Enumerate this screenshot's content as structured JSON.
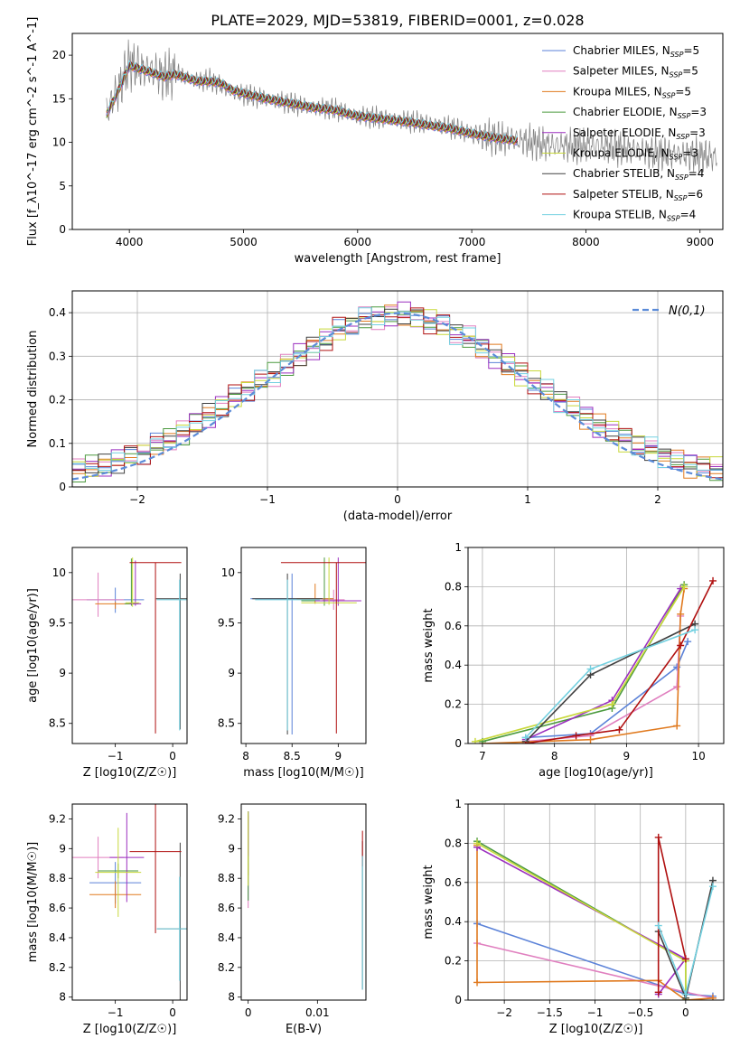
{
  "figure_title": "PLATE=2029, MJD=53819, FIBERID=0001, z=0.028",
  "models": [
    {
      "name": "Chabrier MILES, N",
      "sub": "SSP",
      "n": "=5",
      "color": "#5b82d8"
    },
    {
      "name": "Salpeter MILES, N",
      "sub": "SSP",
      "n": "=5",
      "color": "#e07fbf"
    },
    {
      "name": "Kroupa MILES, N",
      "sub": "SSP",
      "n": "=5",
      "color": "#e07a1f"
    },
    {
      "name": "Chabrier ELODIE, N",
      "sub": "SSP",
      "n": "=3",
      "color": "#4c9a3f"
    },
    {
      "name": "Salpeter ELODIE, N",
      "sub": "SSP",
      "n": "=3",
      "color": "#9b2fbf"
    },
    {
      "name": "Kroupa ELODIE, N",
      "sub": "SSP",
      "n": "=3",
      "color": "#c8d83a"
    },
    {
      "name": "Chabrier STELIB, N",
      "sub": "SSP",
      "n": "=4",
      "color": "#404040"
    },
    {
      "name": "Salpeter STELIB, N",
      "sub": "SSP",
      "n": "=6",
      "color": "#b01010"
    },
    {
      "name": "Kroupa STELIB, N",
      "sub": "SSP",
      "n": "=4",
      "color": "#72d0e0"
    }
  ],
  "chart_data": [
    {
      "type": "line",
      "id": "spectrum",
      "xlabel": "wavelength [Angstrom, rest frame]",
      "ylabel": "Flux [f_λ10^-17 erg cm^-2 s^-1 A^-1]",
      "xlim": [
        3500,
        9200
      ],
      "ylim": [
        0,
        22.5
      ],
      "xticks": [
        4000,
        5000,
        6000,
        7000,
        8000,
        9000
      ],
      "yticks": [
        0,
        5,
        10,
        15,
        20
      ],
      "observed": {
        "color": "#808080",
        "x": [
          3800,
          3900,
          4000,
          4100,
          4200,
          4300,
          4400,
          4500,
          4600,
          4700,
          4800,
          4900,
          5000,
          5200,
          5400,
          5600,
          5800,
          6000,
          6200,
          6400,
          6600,
          6800,
          7000,
          7200,
          7400,
          7600,
          7800,
          8000,
          8200,
          8400,
          8600,
          8800,
          9000,
          9150
        ],
        "y": [
          13.5,
          16.0,
          19.0,
          18.5,
          18.2,
          17.5,
          18.0,
          17.5,
          17.0,
          17.2,
          16.5,
          15.8,
          15.5,
          15.0,
          14.5,
          14.0,
          13.8,
          13.0,
          12.8,
          12.5,
          12.2,
          11.8,
          11.0,
          10.5,
          10.3,
          9.8,
          9.6,
          9.6,
          9.5,
          9.2,
          8.7,
          8.6,
          8.5,
          8.3
        ]
      },
      "model_fit": {
        "x": [
          3800,
          3900,
          4000,
          4100,
          4200,
          4300,
          4400,
          4500,
          4600,
          4700,
          4800,
          4900,
          5000,
          5200,
          5400,
          5600,
          5800,
          6000,
          6200,
          6400,
          6600,
          6800,
          7000,
          7200,
          7400
        ],
        "y": [
          13.2,
          15.8,
          18.8,
          18.4,
          18.0,
          17.5,
          17.8,
          17.4,
          17.0,
          17.0,
          16.8,
          16.0,
          15.6,
          15.0,
          14.5,
          14.0,
          13.7,
          13.0,
          12.7,
          12.4,
          12.0,
          11.6,
          11.0,
          10.5,
          10.2
        ]
      }
    },
    {
      "type": "line",
      "id": "residual_histogram",
      "xlabel": "(data-model)/error",
      "ylabel": "Normed distribution",
      "xlim": [
        -2.5,
        2.5
      ],
      "ylim": [
        0,
        0.45
      ],
      "xticks": [
        -2,
        -1,
        0,
        1,
        2
      ],
      "yticks": [
        0.0,
        0.1,
        0.2,
        0.3,
        0.4
      ],
      "grid": true,
      "reference": {
        "label": "N(0,1)",
        "mu": 0,
        "sigma": 1,
        "color": "#5b8bd8"
      },
      "bin_centers": [
        -2.45,
        -2.35,
        -2.25,
        -2.15,
        -2.05,
        -1.95,
        -1.85,
        -1.75,
        -1.65,
        -1.55,
        -1.45,
        -1.35,
        -1.25,
        -1.15,
        -1.05,
        -0.95,
        -0.85,
        -0.75,
        -0.65,
        -0.55,
        -0.45,
        -0.35,
        -0.25,
        -0.15,
        -0.05,
        0.05,
        0.15,
        0.25,
        0.35,
        0.45,
        0.55,
        0.65,
        0.75,
        0.85,
        0.95,
        1.05,
        1.15,
        1.25,
        1.35,
        1.45,
        1.55,
        1.65,
        1.75,
        1.85,
        1.95,
        2.05,
        2.15,
        2.25,
        2.35,
        2.45
      ],
      "envelope": [
        0.04,
        0.045,
        0.05,
        0.06,
        0.07,
        0.08,
        0.095,
        0.11,
        0.125,
        0.145,
        0.165,
        0.185,
        0.205,
        0.225,
        0.245,
        0.26,
        0.28,
        0.3,
        0.32,
        0.34,
        0.36,
        0.375,
        0.385,
        0.39,
        0.395,
        0.395,
        0.39,
        0.38,
        0.37,
        0.355,
        0.34,
        0.32,
        0.3,
        0.28,
        0.26,
        0.24,
        0.22,
        0.2,
        0.18,
        0.16,
        0.14,
        0.125,
        0.11,
        0.095,
        0.085,
        0.07,
        0.06,
        0.05,
        0.045,
        0.04
      ]
    },
    {
      "type": "scatter",
      "id": "age_vs_Z",
      "xlabel": "Z [log10(Z/Z☉)]",
      "ylabel": "age [log10(age/yr)]",
      "xlim": [
        -1.75,
        0.25
      ],
      "ylim": [
        8.3,
        10.25
      ],
      "xticks": [
        -1,
        0
      ],
      "yticks": [
        8.5,
        9.0,
        9.5,
        10.0
      ],
      "points": [
        {
          "x": -1.0,
          "y": 9.73,
          "xerr": 0.5,
          "yerr_lo": 0.13,
          "yerr_hi": 0.12
        },
        {
          "x": -1.3,
          "y": 9.73,
          "xerr": 0.45,
          "yerr_lo": 0.17,
          "yerr_hi": 0.27
        },
        {
          "x": -1.0,
          "y": 9.69,
          "xerr": 0.35,
          "yerr_lo": 0.05,
          "yerr_hi": 0.02
        },
        {
          "x": -0.72,
          "y": 9.69,
          "xerr": 0.12,
          "yerr_lo": 0.02,
          "yerr_hi": 0.45
        },
        {
          "x": -0.65,
          "y": 9.69,
          "xerr": 0.1,
          "yerr_lo": 0.02,
          "yerr_hi": 0.43
        },
        {
          "x": -0.7,
          "y": 9.7,
          "xerr": 0.12,
          "yerr_lo": 0.04,
          "yerr_hi": 0.45
        },
        {
          "x": 0.13,
          "y": 9.74,
          "xerr": 0.42,
          "yerr_lo": 1.3,
          "yerr_hi": 0.25
        },
        {
          "x": -0.3,
          "y": 10.1,
          "xerr": 0.45,
          "yerr_lo": 1.7,
          "yerr_hi": 0.0
        },
        {
          "x": 0.12,
          "y": 9.73,
          "xerr": 0.4,
          "yerr_lo": 1.3,
          "yerr_hi": 0.2
        }
      ]
    },
    {
      "type": "scatter",
      "id": "age_vs_mass",
      "xlabel": "mass [log10(M/M☉)]",
      "ylabel": "",
      "xlim": [
        7.95,
        9.3
      ],
      "ylim": [
        8.3,
        10.25
      ],
      "xticks": [
        8.0,
        8.5,
        9.0
      ],
      "yticks": [
        8.5,
        9.0,
        9.5,
        10.0
      ],
      "points": [
        {
          "x": 8.5,
          "y": 9.74,
          "xerr": 0.45,
          "yerr_lo": 1.35,
          "yerr_hi": 0.25
        },
        {
          "x": 8.95,
          "y": 9.73,
          "xerr": 0.12,
          "yerr_lo": 0.1,
          "yerr_hi": 0.1
        },
        {
          "x": 8.75,
          "y": 9.74,
          "xerr": 0.2,
          "yerr_lo": 0.05,
          "yerr_hi": 0.15
        },
        {
          "x": 8.85,
          "y": 9.72,
          "xerr": 0.25,
          "yerr_lo": 0.05,
          "yerr_hi": 0.43
        },
        {
          "x": 9.0,
          "y": 9.72,
          "xerr": 0.25,
          "yerr_lo": 0.05,
          "yerr_hi": 0.43
        },
        {
          "x": 8.9,
          "y": 9.7,
          "xerr": 0.3,
          "yerr_lo": 0.02,
          "yerr_hi": 0.45
        },
        {
          "x": 8.45,
          "y": 9.74,
          "xerr": 0.38,
          "yerr_lo": 1.35,
          "yerr_hi": 0.25
        },
        {
          "x": 8.98,
          "y": 10.1,
          "xerr": 0.6,
          "yerr_lo": 1.7,
          "yerr_hi": 0.0
        },
        {
          "x": 8.45,
          "y": 9.73,
          "xerr": 0.35,
          "yerr_lo": 1.3,
          "yerr_hi": 0.2
        }
      ]
    },
    {
      "type": "line",
      "id": "mass_weight_vs_age",
      "xlabel": "age [log10(age/yr)]",
      "ylabel": "mass weight",
      "xlim": [
        6.8,
        10.35
      ],
      "ylim": [
        0,
        1.0
      ],
      "xticks": [
        7,
        8,
        9,
        10
      ],
      "yticks": [
        0.0,
        0.2,
        0.4,
        0.6,
        0.8,
        1.0
      ],
      "grid": true,
      "series": [
        {
          "x": [
            7.6,
            8.5,
            9.7,
            9.85
          ],
          "y": [
            0.03,
            0.05,
            0.39,
            0.52
          ]
        },
        {
          "x": [
            7.6,
            8.5,
            9.7,
            9.75
          ],
          "y": [
            0.01,
            0.04,
            0.29,
            0.65
          ]
        },
        {
          "x": [
            7.0,
            8.5,
            9.7,
            9.75,
            9.8
          ],
          "y": [
            0.0,
            0.02,
            0.09,
            0.66,
            0.79
          ]
        },
        {
          "x": [
            7.0,
            8.8,
            9.8
          ],
          "y": [
            0.01,
            0.18,
            0.81
          ]
        },
        {
          "x": [
            7.6,
            8.8,
            9.75
          ],
          "y": [
            0.02,
            0.22,
            0.79
          ]
        },
        {
          "x": [
            6.9,
            8.8,
            9.8
          ],
          "y": [
            0.01,
            0.2,
            0.8
          ]
        },
        {
          "x": [
            7.6,
            8.5,
            9.95
          ],
          "y": [
            0.01,
            0.35,
            0.61
          ]
        },
        {
          "x": [
            7.6,
            8.3,
            8.9,
            9.75,
            10.2
          ],
          "y": [
            0.0,
            0.04,
            0.07,
            0.5,
            0.83
          ]
        },
        {
          "x": [
            7.6,
            8.5,
            9.95
          ],
          "y": [
            0.03,
            0.38,
            0.58
          ]
        }
      ]
    },
    {
      "type": "scatter",
      "id": "mass_vs_Z",
      "xlabel": "Z [log10(Z/Z☉)]",
      "ylabel": "mass [log10(M/M☉)]",
      "xlim": [
        -1.75,
        0.25
      ],
      "ylim": [
        7.98,
        9.3
      ],
      "xticks": [
        -1,
        0
      ],
      "yticks": [
        8.0,
        8.2,
        8.4,
        8.6,
        8.8,
        9.0,
        9.2
      ],
      "points": [
        {
          "x": -1.0,
          "y": 8.77,
          "xerr": 0.45,
          "yerr": 0.14
        },
        {
          "x": -1.3,
          "y": 8.94,
          "xerr": 0.45,
          "yerr": 0.14
        },
        {
          "x": -1.0,
          "y": 8.69,
          "xerr": 0.45,
          "yerr": 0.09
        },
        {
          "x": -0.95,
          "y": 8.85,
          "xerr": 0.35,
          "yerr": 0.05
        },
        {
          "x": -0.8,
          "y": 8.94,
          "xerr": 0.3,
          "yerr": 0.3
        },
        {
          "x": -0.95,
          "y": 8.84,
          "xerr": 0.4,
          "yerr": 0.3
        },
        {
          "x": 0.13,
          "y": 8.46,
          "xerr": 0.4,
          "yerr": 0.58
        },
        {
          "x": -0.3,
          "y": 8.98,
          "xerr": 0.45,
          "yerr": 0.55
        },
        {
          "x": 0.12,
          "y": 8.46,
          "xerr": 0.4,
          "yerr": 0.35
        }
      ]
    },
    {
      "type": "scatter",
      "id": "mass_vs_ebv",
      "xlabel": "E(B-V)",
      "ylabel": "",
      "xlim": [
        -0.001,
        0.017
      ],
      "ylim": [
        7.98,
        9.3
      ],
      "xticks": [
        0.0,
        0.01
      ],
      "yticks": [
        8.0,
        8.2,
        8.4,
        8.6,
        8.8,
        9.0,
        9.2
      ],
      "points": [
        {
          "x": 0.0,
          "y": 8.95,
          "yerr": 0.3
        },
        {
          "x": 0.0,
          "y": 8.75,
          "yerr": 0.15
        },
        {
          "x": 0.0,
          "y": 9.02,
          "yerr": 0.2
        },
        {
          "x": 0.0,
          "y": 8.95,
          "yerr": 0.3
        },
        {
          "x": 0.0,
          "y": 9.1,
          "yerr": 0.15
        },
        {
          "x": 0.0,
          "y": 9.0,
          "yerr": 0.25
        },
        {
          "x": 0.0165,
          "y": 8.55,
          "yerr": 0.5
        },
        {
          "x": 0.0165,
          "y": 9.0,
          "yerr": 0.12
        },
        {
          "x": 0.0165,
          "y": 8.5,
          "yerr": 0.45
        }
      ]
    },
    {
      "type": "line",
      "id": "mass_weight_vs_Z",
      "xlabel": "Z [log10(Z/Z☉)]",
      "ylabel": "mass weight",
      "xlim": [
        -2.4,
        0.42
      ],
      "ylim": [
        0,
        1.0
      ],
      "xticks": [
        -2.0,
        -1.5,
        -1.0,
        -0.5,
        0.0
      ],
      "yticks": [
        0.0,
        0.2,
        0.4,
        0.6,
        0.8,
        1.0
      ],
      "grid": true,
      "series": [
        {
          "x": [
            -2.3,
            0.0,
            0.3
          ],
          "y": [
            0.39,
            0.03,
            0.02
          ]
        },
        {
          "x": [
            -2.3,
            0.0,
            0.3
          ],
          "y": [
            0.29,
            0.04,
            0.01
          ]
        },
        {
          "x": [
            -2.3,
            -2.3,
            -0.3,
            0.0,
            0.3
          ],
          "y": [
            0.79,
            0.09,
            0.1,
            0.0,
            0.01
          ]
        },
        {
          "x": [
            -2.3,
            0.0,
            0.0
          ],
          "y": [
            0.81,
            0.2,
            0.0
          ]
        },
        {
          "x": [
            -2.3,
            0.0,
            -0.3
          ],
          "y": [
            0.78,
            0.21,
            0.03
          ]
        },
        {
          "x": [
            -2.3,
            0.0,
            0.0
          ],
          "y": [
            0.8,
            0.2,
            0.01
          ]
        },
        {
          "x": [
            -0.3,
            0.0,
            0.3
          ],
          "y": [
            0.35,
            0.01,
            0.61
          ]
        },
        {
          "x": [
            -0.3,
            -0.3,
            0.0
          ],
          "y": [
            0.04,
            0.83,
            0.21
          ]
        },
        {
          "x": [
            -0.3,
            0.0,
            0.3
          ],
          "y": [
            0.38,
            0.03,
            0.58
          ]
        }
      ]
    }
  ]
}
